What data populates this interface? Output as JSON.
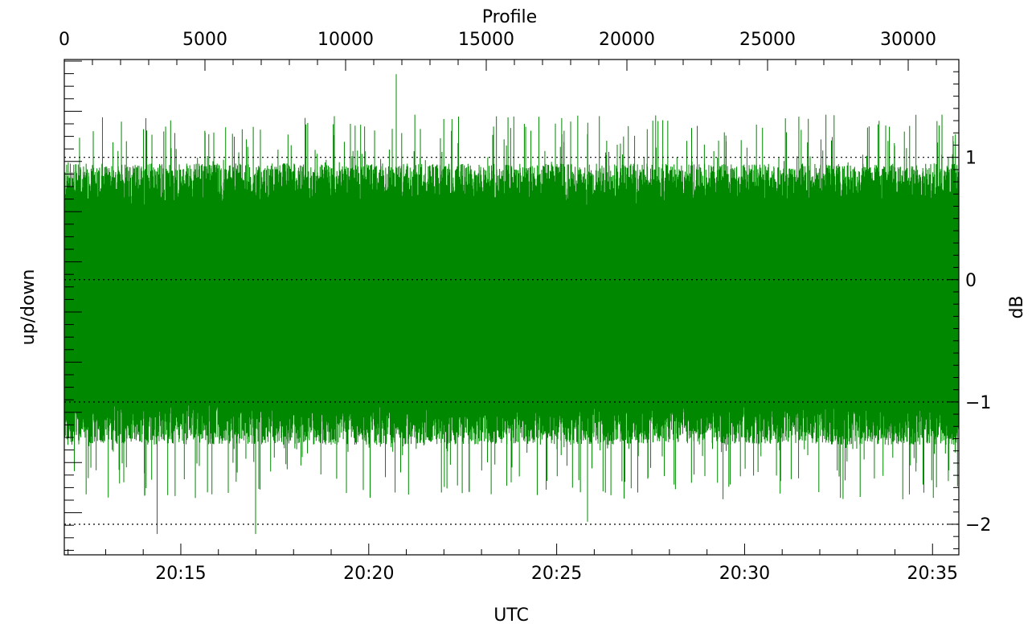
{
  "chart_data": {
    "type": "line",
    "title": "",
    "x_top": {
      "label": "Profile",
      "ticks": [
        0,
        5000,
        10000,
        15000,
        20000,
        25000,
        30000
      ],
      "tick_labels": [
        "0",
        "5000",
        "10000",
        "15000",
        "20000",
        "25000",
        "30000"
      ],
      "range": [
        0,
        31800
      ]
    },
    "x_bottom": {
      "label": "UTC",
      "ticks": [
        "20:15",
        "20:20",
        "20:25",
        "20:30",
        "20:35"
      ],
      "tick_minutes": [
        15,
        20,
        25,
        30,
        35
      ],
      "range_minutes": [
        11.9,
        35.7
      ]
    },
    "y_left": {
      "label": "up/down"
    },
    "y_right": {
      "label": "dB",
      "ticks": [
        1,
        0,
        -1,
        -2
      ],
      "tick_labels": [
        "1",
        "0",
        "−1",
        "−2"
      ],
      "range": [
        -2.25,
        1.8
      ]
    },
    "reference_lines": [
      1,
      0,
      -1,
      -2
    ],
    "grid": false,
    "series": [
      {
        "color": "#008800",
        "description_values": {
          "typical_band": [
            -1.0,
            0.6
          ],
          "mean": -0.25,
          "max": 1.68,
          "min": -2.08
        },
        "notable_peaks": [
          {
            "profile": 11800,
            "value": 1.68
          },
          {
            "profile": 2900,
            "value": 1.32
          },
          {
            "profile": 29200,
            "value": 1.26
          },
          {
            "profile": 22300,
            "value": 1.24
          }
        ],
        "notable_troughs": [
          {
            "profile": 3300,
            "value": -2.08
          },
          {
            "profile": 6800,
            "value": -2.08
          },
          {
            "profile": 18600,
            "value": -1.98
          }
        ]
      }
    ]
  }
}
